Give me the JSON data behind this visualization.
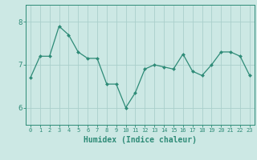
{
  "x": [
    0,
    1,
    2,
    3,
    4,
    5,
    6,
    7,
    8,
    9,
    10,
    11,
    12,
    13,
    14,
    15,
    16,
    17,
    18,
    19,
    20,
    21,
    22,
    23
  ],
  "y": [
    6.7,
    7.2,
    7.2,
    7.9,
    7.7,
    7.3,
    7.15,
    7.15,
    6.55,
    6.55,
    6.0,
    6.35,
    6.9,
    7.0,
    6.95,
    6.9,
    7.25,
    6.85,
    6.75,
    7.0,
    7.3,
    7.3,
    7.2,
    6.75
  ],
  "line_color": "#2e8b77",
  "marker": "D",
  "marker_size": 2,
  "bg_color": "#cce8e4",
  "grid_color": "#aacfcb",
  "axis_color": "#2e8b77",
  "tick_color": "#2e8b77",
  "xlabel": "Humidex (Indice chaleur)",
  "xlabel_fontsize": 7,
  "yticks": [
    6,
    7,
    8
  ],
  "ylim": [
    5.6,
    8.4
  ],
  "xlim": [
    -0.5,
    23.5
  ],
  "xticks": [
    0,
    1,
    2,
    3,
    4,
    5,
    6,
    7,
    8,
    9,
    10,
    11,
    12,
    13,
    14,
    15,
    16,
    17,
    18,
    19,
    20,
    21,
    22,
    23
  ]
}
